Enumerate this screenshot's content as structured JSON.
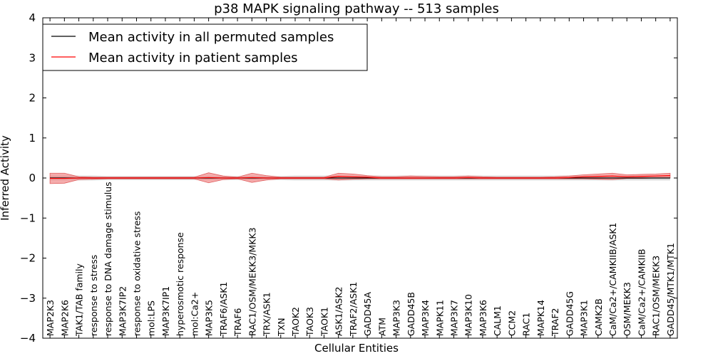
{
  "chart_data": {
    "type": "line",
    "title": "p38 MAPK signaling pathway -- 513 samples",
    "xlabel": "Cellular Entities",
    "ylabel": "Inferred Activity",
    "ylim": [
      -4,
      4
    ],
    "yticks": [
      -4,
      -3,
      -2,
      -1,
      0,
      1,
      2,
      3,
      4
    ],
    "ytick_labels": [
      "−4",
      "−3",
      "−2",
      "−1",
      "0",
      "1",
      "2",
      "3",
      "4"
    ],
    "grid": false,
    "legend_position": "top-left",
    "categories": [
      "MAP2K3",
      "MAP2K6",
      "TAK1/TAB family",
      "response to stress",
      "response to DNA damage stimulus",
      "MAP3K7IP2",
      "response to oxidative stress",
      "mol:LPS",
      "MAP3K7IP1",
      "hyperosmotic response",
      "mol:Ca2+",
      "MAP3K5",
      "TRAF6/ASK1",
      "TRAF6",
      "RAC1/OSM/MEKK3/MKK3",
      "TRX/ASK1",
      "TXN",
      "TAOK2",
      "TAOK3",
      "TAOK1",
      "ASK1/ASK2",
      "TRAF2/ASK1",
      "GADD45A",
      "ATM",
      "MAP3K3",
      "GADD45B",
      "MAP3K4",
      "MAPK11",
      "MAP3K7",
      "MAP3K10",
      "MAP3K6",
      "CALM1",
      "CCM2",
      "RAC1",
      "MAPK14",
      "TRAF2",
      "GADD45G",
      "MAP3K1",
      "CAMK2B",
      "CaM/Ca2+/CAMKIIB/ASK1",
      "OSM/MEKK3",
      "CaM/Ca2+/CAMKIIB",
      "RAC1/OSM/MEKK3",
      "GADD45/MTK1/MTK1"
    ],
    "series": [
      {
        "name": "Mean activity in all permuted samples",
        "color": "#000000",
        "style": "solid",
        "values": [
          0,
          0,
          0,
          0,
          0,
          0,
          0,
          0,
          0,
          0,
          0,
          0,
          0,
          0,
          0,
          0,
          0,
          0,
          0,
          0,
          0,
          0,
          0,
          0,
          0,
          0,
          0,
          0,
          0,
          0,
          0,
          0,
          0,
          0,
          0,
          0,
          0,
          0,
          0,
          0,
          0,
          0,
          0,
          0
        ],
        "band_lower": [
          -0.06,
          -0.06,
          -0.06,
          -0.06,
          -0.05,
          -0.05,
          -0.05,
          -0.05,
          -0.05,
          -0.05,
          -0.05,
          -0.05,
          -0.05,
          -0.05,
          -0.05,
          -0.05,
          -0.05,
          -0.06,
          -0.06,
          -0.06,
          -0.06,
          -0.06,
          -0.06,
          -0.06,
          -0.06,
          -0.06,
          -0.06,
          -0.06,
          -0.06,
          -0.06,
          -0.06,
          -0.06,
          -0.06,
          -0.06,
          -0.06,
          -0.06,
          -0.06,
          -0.06,
          -0.06,
          -0.06,
          -0.06,
          -0.06,
          -0.06,
          -0.06
        ],
        "band_upper": [
          0.06,
          0.06,
          0.06,
          0.06,
          0.05,
          0.05,
          0.05,
          0.05,
          0.05,
          0.05,
          0.05,
          0.05,
          0.05,
          0.05,
          0.05,
          0.05,
          0.05,
          0.06,
          0.06,
          0.06,
          0.06,
          0.06,
          0.06,
          0.06,
          0.06,
          0.06,
          0.06,
          0.06,
          0.06,
          0.06,
          0.06,
          0.06,
          0.06,
          0.06,
          0.06,
          0.06,
          0.06,
          0.06,
          0.06,
          0.06,
          0.06,
          0.06,
          0.06,
          0.06
        ],
        "band_color": "#cccccc"
      },
      {
        "name": "Mean activity in patient samples",
        "color": "#ff0000",
        "style": "solid",
        "values": [
          -0.01,
          -0.01,
          0,
          0,
          0,
          0,
          0,
          0,
          0,
          0,
          0,
          0.01,
          0,
          0,
          0.01,
          0,
          0,
          0,
          0,
          0,
          0.04,
          0.03,
          0.02,
          0,
          0,
          0,
          0,
          0,
          0,
          0.01,
          0,
          0,
          0,
          0,
          0,
          0,
          0.01,
          0.03,
          0.04,
          0.05,
          0.03,
          0.04,
          0.05,
          0.06
        ],
        "band_lower": [
          -0.14,
          -0.13,
          -0.04,
          -0.03,
          -0.02,
          -0.02,
          -0.02,
          -0.02,
          -0.02,
          -0.02,
          -0.02,
          -0.12,
          -0.04,
          -0.02,
          -0.11,
          -0.05,
          -0.02,
          -0.02,
          -0.02,
          -0.02,
          -0.05,
          -0.03,
          -0.02,
          -0.02,
          -0.02,
          -0.02,
          -0.02,
          -0.02,
          -0.02,
          -0.02,
          -0.02,
          -0.02,
          -0.02,
          -0.02,
          -0.02,
          -0.02,
          -0.02,
          -0.02,
          -0.03,
          -0.04,
          -0.01,
          -0.01,
          0,
          0
        ],
        "band_upper": [
          0.12,
          0.12,
          0.03,
          0.02,
          0.02,
          0.02,
          0.02,
          0.02,
          0.02,
          0.02,
          0.02,
          0.13,
          0.05,
          0.02,
          0.12,
          0.06,
          0.02,
          0.02,
          0.02,
          0.02,
          0.12,
          0.1,
          0.06,
          0.03,
          0.03,
          0.05,
          0.04,
          0.03,
          0.03,
          0.05,
          0.03,
          0.02,
          0.02,
          0.02,
          0.02,
          0.03,
          0.05,
          0.08,
          0.1,
          0.12,
          0.08,
          0.09,
          0.1,
          0.12
        ],
        "band_color": "#f08080"
      }
    ]
  }
}
